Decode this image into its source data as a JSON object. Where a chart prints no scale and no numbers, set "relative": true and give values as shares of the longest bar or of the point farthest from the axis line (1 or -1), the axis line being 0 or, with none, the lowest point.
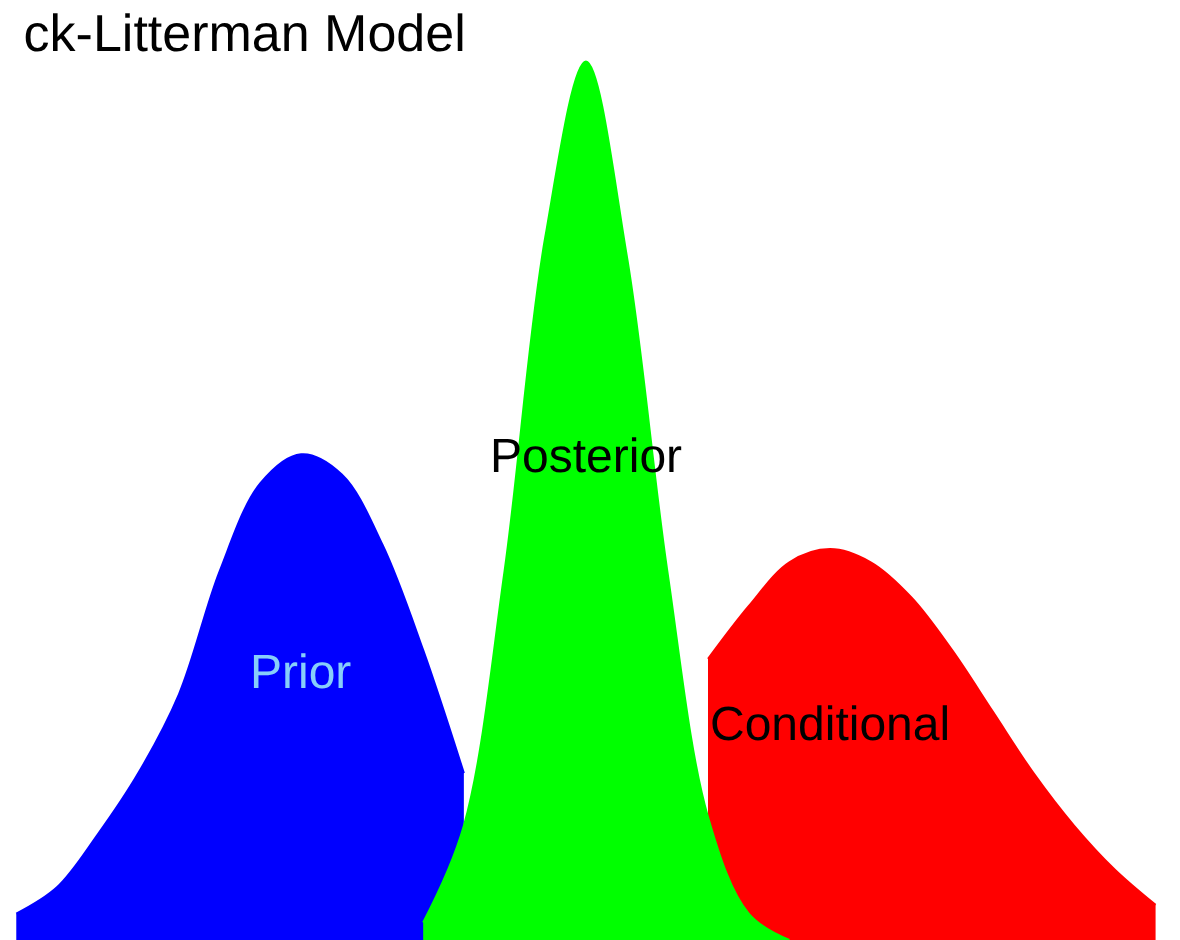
{
  "chart_data": {
    "type": "area",
    "title": "ck-Litterman Model",
    "relative": true,
    "legend": false,
    "categories": [
      null,
      null,
      null,
      null,
      null,
      null,
      null,
      null,
      null,
      null,
      null,
      null,
      null,
      null,
      null,
      null,
      null,
      null,
      null,
      null,
      null,
      null,
      null,
      null,
      null,
      null,
      null,
      null,
      null
    ],
    "series": [
      {
        "name": "Prior",
        "color": "#0000ff",
        "values": [
          0.03,
          0.06,
          0.12,
          0.19,
          0.28,
          0.42,
          0.52,
          0.553,
          0.53,
          0.45,
          0.33,
          0.19,
          null,
          null,
          null,
          null,
          null,
          null,
          null,
          null,
          null,
          null,
          null,
          null,
          null,
          null,
          null,
          null,
          null
        ]
      },
      {
        "name": "Conditional",
        "color": "#ff0000",
        "values": [
          null,
          null,
          null,
          null,
          null,
          null,
          null,
          null,
          null,
          null,
          null,
          null,
          null,
          null,
          null,
          null,
          null,
          0.32,
          0.38,
          0.43,
          0.445,
          0.43,
          0.39,
          0.33,
          0.26,
          0.19,
          0.13,
          0.08,
          0.04
        ]
      },
      {
        "name": "Posterior",
        "color": "#00ff00",
        "values": [
          null,
          null,
          null,
          null,
          null,
          null,
          null,
          null,
          null,
          null,
          0.02,
          0.13,
          0.42,
          0.8,
          1,
          0.78,
          0.42,
          0.14,
          0.03,
          0,
          null,
          null,
          null,
          null,
          null,
          null,
          null,
          null,
          null
        ]
      }
    ]
  }
}
